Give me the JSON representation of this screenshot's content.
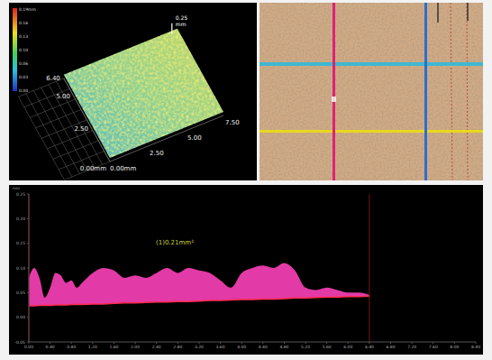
{
  "surface_view": {
    "colorbar_labels": [
      "0.19mm",
      "0.16",
      "0.13",
      "0.10",
      "0.06",
      "0.03",
      "0.00"
    ],
    "x_ticks": [
      "0.00mm",
      "2.50",
      "5.00",
      "7.50"
    ],
    "y_ticks": [
      "0.00mm",
      "2.50",
      "5.00",
      "6.40"
    ],
    "z_label": "0.25",
    "z_unit": "mm"
  },
  "chart_data": {
    "type": "area",
    "y_label": "mm",
    "annotation": "(1)0.21mm²",
    "color": "#e23aa6",
    "grid": false,
    "x": [
      0,
      0.1,
      0.2,
      0.3,
      0.4,
      0.5,
      0.6,
      0.7,
      0.8,
      0.9,
      1.0,
      1.2,
      1.4,
      1.6,
      1.8,
      2.0,
      2.2,
      2.4,
      2.6,
      2.8,
      3.0,
      3.2,
      3.4,
      3.6,
      3.8,
      4.0,
      4.2,
      4.4,
      4.6,
      4.8,
      5.0,
      5.2,
      5.4,
      5.6,
      5.8,
      6.0,
      6.2,
      6.4
    ],
    "values": [
      0.08,
      0.1,
      0.08,
      0.04,
      0.06,
      0.09,
      0.085,
      0.07,
      0.075,
      0.06,
      0.07,
      0.09,
      0.1,
      0.095,
      0.08,
      0.085,
      0.08,
      0.09,
      0.1,
      0.09,
      0.1,
      0.095,
      0.09,
      0.075,
      0.06,
      0.09,
      0.1,
      0.105,
      0.1,
      0.11,
      0.095,
      0.06,
      0.055,
      0.06,
      0.055,
      0.05,
      0.05,
      0.045
    ],
    "baseline": [
      0.023,
      0.023,
      0.024,
      0.024,
      0.024,
      0.025,
      0.025,
      0.025,
      0.026,
      0.026,
      0.026,
      0.027,
      0.027,
      0.028,
      0.029,
      0.029,
      0.03,
      0.031,
      0.031,
      0.032,
      0.032,
      0.033,
      0.034,
      0.034,
      0.035,
      0.036,
      0.036,
      0.037,
      0.037,
      0.038,
      0.039,
      0.039,
      0.04,
      0.041,
      0.041,
      0.042,
      0.042,
      0.043
    ],
    "cursors": [
      0,
      6.4
    ],
    "xlim": [
      0,
      8.4
    ],
    "xticks": [
      {
        "value": 0,
        "label": "0.00"
      },
      {
        "value": 0.4,
        "label": "0.40"
      },
      {
        "value": 0.8,
        "label": "0.80"
      },
      {
        "value": 1.2,
        "label": "1.20"
      },
      {
        "value": 1.6,
        "label": "1.60"
      },
      {
        "value": 2,
        "label": "2.00"
      },
      {
        "value": 2.4,
        "label": "2.40"
      },
      {
        "value": 2.8,
        "label": "2.80"
      },
      {
        "value": 3.2,
        "label": "3.20"
      },
      {
        "value": 3.6,
        "label": "3.60"
      },
      {
        "value": 4,
        "label": "4.00"
      },
      {
        "value": 4.4,
        "label": "4.40"
      },
      {
        "value": 4.8,
        "label": "4.80"
      },
      {
        "value": 5.2,
        "label": "5.20"
      },
      {
        "value": 5.6,
        "label": "5.60"
      },
      {
        "value": 6,
        "label": "6.00"
      },
      {
        "value": 6.4,
        "label": "6.40"
      },
      {
        "value": 6.8,
        "label": "6.80"
      },
      {
        "value": 7.2,
        "label": "7.20"
      },
      {
        "value": 7.6,
        "label": "7.60"
      },
      {
        "value": 8,
        "label": "8.00"
      },
      {
        "value": 8.4,
        "label": "8.40"
      }
    ],
    "ylim": [
      -0.05,
      0.25
    ],
    "yticks": [
      0.25,
      {
        "value": 0.2,
        "label": "0.20"
      },
      0.15,
      {
        "value": 0.1,
        "label": "0.10"
      },
      0.05,
      {
        "value": 0,
        "label": "0.00"
      },
      -0.05
    ]
  }
}
